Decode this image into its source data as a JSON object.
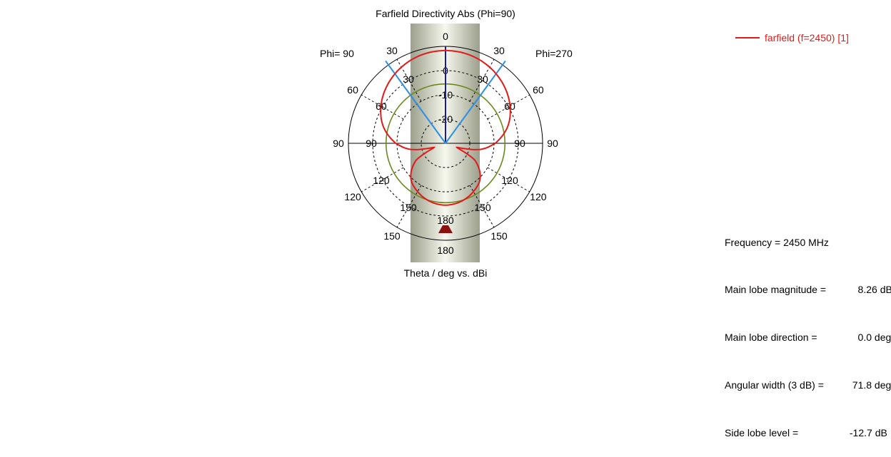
{
  "chart_data": {
    "type": "polar-line",
    "title": "Farfield Directivity Abs (Phi=90)",
    "xlabel": "Theta / deg vs. dBi",
    "phi_left_label": "Phi= 90",
    "phi_right_label": "Phi=270",
    "angle_tick_labels": [
      "0",
      "30",
      "60",
      "90",
      "120",
      "150",
      "180"
    ],
    "radial_tick_labels": [
      "0",
      "-10",
      "-20"
    ],
    "radial_range_db": [
      -30,
      10
    ],
    "radial_rings_db": [
      10,
      0,
      -10,
      -20
    ],
    "reference_ring_db": -5.5,
    "main_lobe_direction_deg": 0,
    "beam_width_lines_deg": [
      -36,
      36
    ],
    "series": [
      {
        "name": "farfield (f=2450) [1]",
        "color": "#e21a1a",
        "theta_deg": [
          0,
          15,
          30,
          45,
          60,
          75,
          90,
          100,
          110,
          120,
          135,
          150,
          165,
          180
        ],
        "directivity_dbi": [
          8.26,
          7.8,
          6.3,
          3.9,
          0.7,
          -3.5,
          -9.5,
          -15.5,
          -25.0,
          -16.0,
          -9.8,
          -7.0,
          -5.2,
          -4.5
        ]
      }
    ]
  },
  "legend": {
    "label": "farfield (f=2450) [1]"
  },
  "info": {
    "rows": [
      {
        "label": "Frequency = 2450 MHz",
        "value": ""
      },
      {
        "label": "Main lobe magnitude =",
        "value": "    8.26 dBi"
      },
      {
        "label": "Main lobe direction =",
        "value": "    0.0 deg."
      },
      {
        "label": "Angular width (3 dB) =",
        "value": "  71.8 deg."
      },
      {
        "label": "Side lobe level =",
        "value": " -12.7 dB"
      }
    ]
  },
  "colors": {
    "curve": "#e21a1a",
    "beam_lines": "#2b8fe3",
    "main_axis": "#1a1aa8",
    "reference_ring": "#6b8a1e",
    "marker": "#8b1010"
  }
}
